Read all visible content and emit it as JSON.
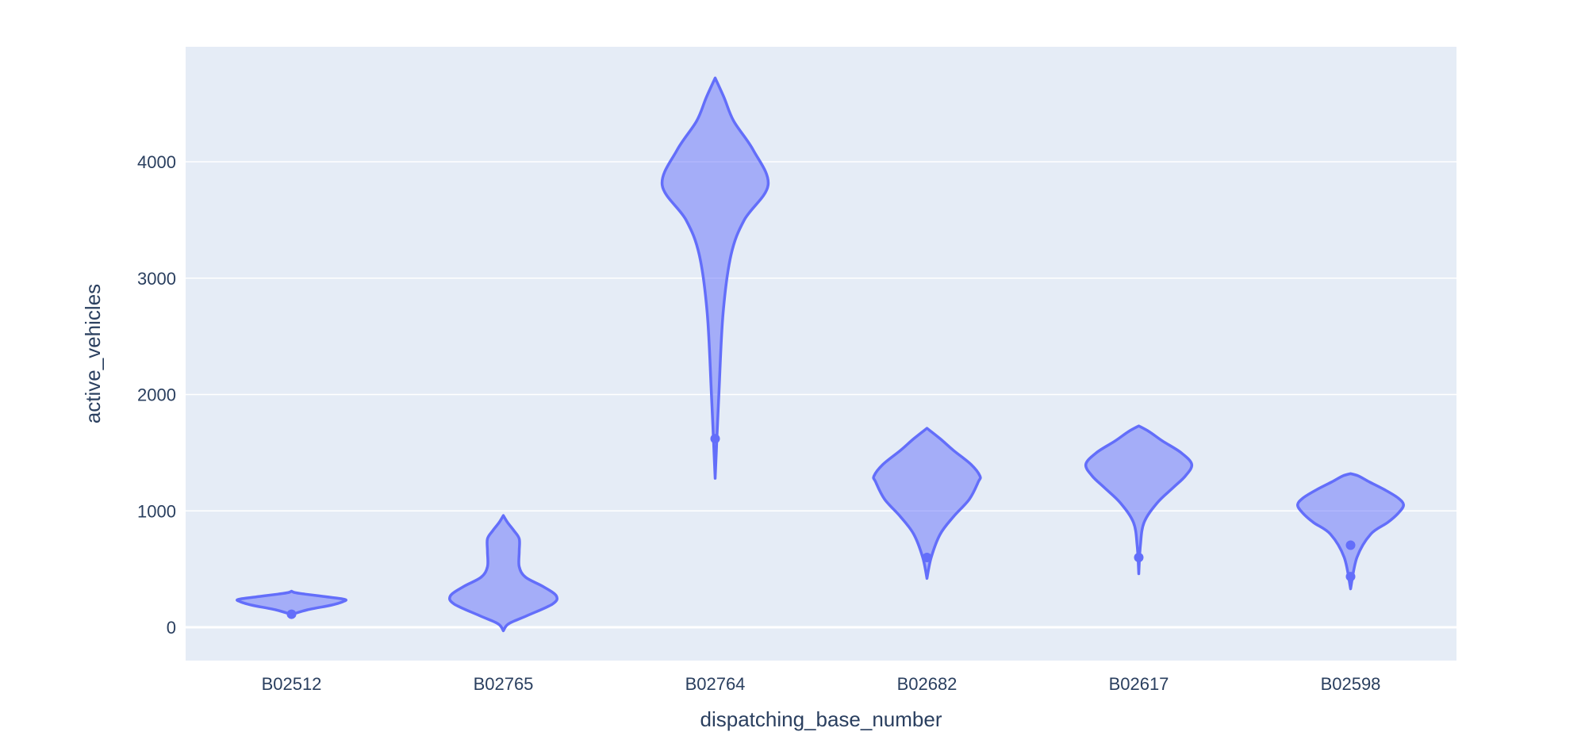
{
  "chart_data": {
    "type": "violin",
    "title": "",
    "xlabel": "dispatching_base_number",
    "ylabel": "active_vehicles",
    "ylim": [
      -300,
      4980
    ],
    "yticks": [
      0,
      1000,
      2000,
      3000,
      4000
    ],
    "grid": true,
    "legend": "none",
    "colors": {
      "line": "#636efa",
      "fill": "#636efa",
      "plot_bg": "#e5ecf6",
      "grid": "#ffffff",
      "text": "#2a3f5f"
    },
    "categories": [
      "B02512",
      "B02765",
      "B02764",
      "B02682",
      "B02617",
      "B02598"
    ],
    "violins": [
      {
        "category": "B02512",
        "outliers": [
          112
        ],
        "density": [
          [
            112,
            0.02
          ],
          [
            150,
            0.3
          ],
          [
            190,
            0.75
          ],
          [
            220,
            0.97
          ],
          [
            240,
            1.0
          ],
          [
            265,
            0.6
          ],
          [
            285,
            0.25
          ],
          [
            298,
            0.06
          ],
          [
            310,
            0.0
          ]
        ]
      },
      {
        "category": "B02765",
        "outliers": [],
        "density": [
          [
            -30,
            0.0
          ],
          [
            30,
            0.1
          ],
          [
            100,
            0.45
          ],
          [
            200,
            0.93
          ],
          [
            270,
            1.0
          ],
          [
            350,
            0.75
          ],
          [
            430,
            0.42
          ],
          [
            520,
            0.3
          ],
          [
            650,
            0.3
          ],
          [
            760,
            0.3
          ],
          [
            830,
            0.2
          ],
          [
            900,
            0.08
          ],
          [
            960,
            0.0
          ]
        ]
      },
      {
        "category": "B02764",
        "outliers": [
          1620
        ],
        "density": [
          [
            1280,
            0.0
          ],
          [
            2000,
            0.07
          ],
          [
            2700,
            0.15
          ],
          [
            3200,
            0.3
          ],
          [
            3500,
            0.55
          ],
          [
            3800,
            1.0
          ],
          [
            4100,
            0.72
          ],
          [
            4350,
            0.35
          ],
          [
            4550,
            0.17
          ],
          [
            4720,
            0.0
          ]
        ]
      },
      {
        "category": "B02682",
        "outliers": [
          600
        ],
        "density": [
          [
            420,
            0.0
          ],
          [
            600,
            0.08
          ],
          [
            800,
            0.25
          ],
          [
            950,
            0.5
          ],
          [
            1100,
            0.8
          ],
          [
            1250,
            0.97
          ],
          [
            1300,
            1.0
          ],
          [
            1400,
            0.83
          ],
          [
            1520,
            0.5
          ],
          [
            1620,
            0.25
          ],
          [
            1710,
            0.0
          ]
        ]
      },
      {
        "category": "B02617",
        "outliers": [
          600
        ],
        "density": [
          [
            460,
            0.0
          ],
          [
            700,
            0.03
          ],
          [
            900,
            0.1
          ],
          [
            1070,
            0.35
          ],
          [
            1200,
            0.65
          ],
          [
            1300,
            0.88
          ],
          [
            1400,
            1.0
          ],
          [
            1500,
            0.8
          ],
          [
            1600,
            0.45
          ],
          [
            1680,
            0.2
          ],
          [
            1730,
            0.0
          ]
        ]
      },
      {
        "category": "B02598",
        "outliers": [
          435,
          705
        ],
        "density": [
          [
            330,
            0.0
          ],
          [
            600,
            0.12
          ],
          [
            800,
            0.38
          ],
          [
            900,
            0.7
          ],
          [
            980,
            0.9
          ],
          [
            1050,
            1.0
          ],
          [
            1110,
            0.9
          ],
          [
            1180,
            0.65
          ],
          [
            1250,
            0.35
          ],
          [
            1300,
            0.15
          ],
          [
            1320,
            0.0
          ]
        ]
      }
    ]
  }
}
